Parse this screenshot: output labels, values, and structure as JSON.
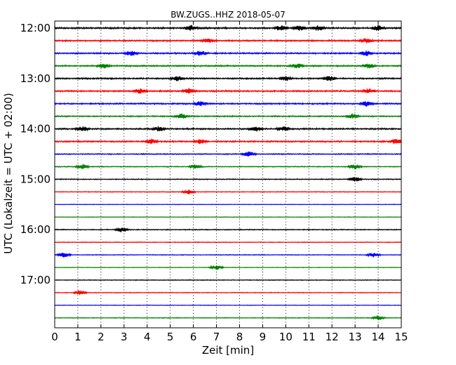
{
  "chart_data": {
    "type": "line",
    "title": "BW.ZUGS..HHZ 2018-05-07",
    "xlabel": "Zeit  [min]",
    "ylabel": "UTC (Lokalzeit = UTC + 02:00)",
    "xlim": [
      0,
      15
    ],
    "x_ticks": [
      "0",
      "1",
      "2",
      "3",
      "4",
      "5",
      "6",
      "7",
      "8",
      "9",
      "10",
      "11",
      "12",
      "13",
      "14",
      "15"
    ],
    "y_tick_labels": [
      "12:00",
      "13:00",
      "14:00",
      "15:00",
      "16:00",
      "17:00"
    ],
    "grid": "vertical dotted",
    "color_cycle": [
      "#000000",
      "#ff0000",
      "#0000ff",
      "#008000"
    ],
    "traces": [
      {
        "start": "12:00",
        "color": "#000000",
        "amplitude": 0.9,
        "events_min": [
          5.9,
          9.8,
          10.6,
          11.4,
          14.0
        ]
      },
      {
        "start": "12:15",
        "color": "#ff0000",
        "amplitude": 0.8,
        "events_min": [
          6.6,
          13.5
        ]
      },
      {
        "start": "12:30",
        "color": "#0000ff",
        "amplitude": 0.8,
        "events_min": [
          3.3,
          6.3,
          13.5
        ]
      },
      {
        "start": "12:45",
        "color": "#008000",
        "amplitude": 0.8,
        "events_min": [
          2.1,
          10.5,
          13.6
        ]
      },
      {
        "start": "13:00",
        "color": "#000000",
        "amplitude": 0.8,
        "events_min": [
          5.3,
          10.0,
          11.9
        ]
      },
      {
        "start": "13:15",
        "color": "#ff0000",
        "amplitude": 0.8,
        "events_min": [
          3.7,
          5.8,
          13.6
        ]
      },
      {
        "start": "13:30",
        "color": "#0000ff",
        "amplitude": 0.8,
        "events_min": [
          6.3,
          13.5
        ]
      },
      {
        "start": "13:45",
        "color": "#008000",
        "amplitude": 0.7,
        "events_min": [
          5.5,
          12.9
        ]
      },
      {
        "start": "14:00",
        "color": "#000000",
        "amplitude": 0.8,
        "events_min": [
          1.2,
          4.5,
          8.7,
          9.9
        ]
      },
      {
        "start": "14:15",
        "color": "#ff0000",
        "amplitude": 0.8,
        "events_min": [
          4.2,
          6.3,
          14.8
        ]
      },
      {
        "start": "14:30",
        "color": "#0000ff",
        "amplitude": 0.6,
        "events_min": [
          8.4
        ]
      },
      {
        "start": "14:45",
        "color": "#008000",
        "amplitude": 0.5,
        "events_min": [
          1.2,
          6.1,
          13.0
        ]
      },
      {
        "start": "15:00",
        "color": "#000000",
        "amplitude": 0.5,
        "events_min": [
          13.0
        ]
      },
      {
        "start": "15:15",
        "color": "#ff0000",
        "amplitude": 0.4,
        "events_min": [
          5.8
        ]
      },
      {
        "start": "15:30",
        "color": "#0000ff",
        "amplitude": 0.3,
        "events_min": []
      },
      {
        "start": "15:45",
        "color": "#008000",
        "amplitude": 0.3,
        "events_min": []
      },
      {
        "start": "16:00",
        "color": "#000000",
        "amplitude": 0.5,
        "events_min": [
          2.9
        ]
      },
      {
        "start": "16:15",
        "color": "#ff0000",
        "amplitude": 0.4,
        "events_min": []
      },
      {
        "start": "16:30",
        "color": "#0000ff",
        "amplitude": 0.4,
        "events_min": [
          0.4,
          13.8
        ]
      },
      {
        "start": "16:45",
        "color": "#008000",
        "amplitude": 0.3,
        "events_min": [
          7.0
        ]
      },
      {
        "start": "17:00",
        "color": "#000000",
        "amplitude": 0.4,
        "events_min": []
      },
      {
        "start": "17:15",
        "color": "#ff0000",
        "amplitude": 0.4,
        "events_min": [
          1.1
        ]
      },
      {
        "start": "17:30",
        "color": "#0000ff",
        "amplitude": 0.3,
        "events_min": []
      },
      {
        "start": "17:45",
        "color": "#008000",
        "amplitude": 0.4,
        "events_min": [
          14.0
        ]
      }
    ]
  }
}
